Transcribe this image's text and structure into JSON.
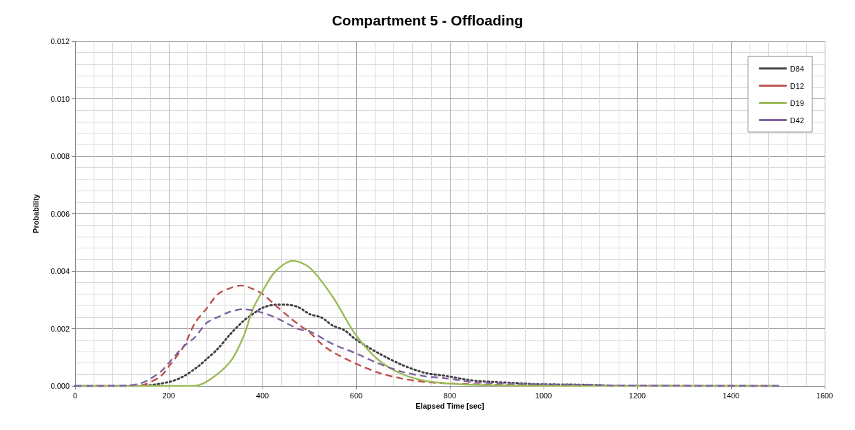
{
  "chart_data": {
    "type": "line",
    "title": "Compartment 5 - Offloading",
    "xlabel": "Elapsed Time [sec]",
    "ylabel": "Probability",
    "xlim": [
      0,
      1600
    ],
    "xticks": [
      0,
      200,
      400,
      600,
      800,
      1000,
      1200,
      1400,
      1600
    ],
    "ylim": [
      0,
      0.012
    ],
    "yticks": [
      {
        "value": 0,
        "label": "0.000"
      },
      {
        "value": 0.002,
        "label": "0.002"
      },
      {
        "value": 0.004,
        "label": "0.004"
      },
      {
        "value": 0.006,
        "label": "0.006"
      },
      {
        "value": 0.008,
        "label": "0.008"
      },
      {
        "value": 0.01,
        "label": "0.010"
      },
      {
        "value": 0.012,
        "label": "0.012"
      }
    ],
    "grid": true,
    "legend": "top right",
    "marker": "none",
    "series": [
      {
        "name": "D84",
        "color": "#404040",
        "line_style": "dotted",
        "x": [
          0,
          134,
          201,
          232,
          261,
          281,
          305,
          330,
          359,
          379,
          400,
          428,
          452,
          477,
          501,
          526,
          550,
          575,
          599,
          648,
          697,
          746,
          795,
          844,
          893,
          942,
          991,
          1089,
          1155,
          1500
        ],
        "values": [
          0,
          0,
          0.00014,
          0.00034,
          0.00066,
          0.00094,
          0.0013,
          0.00178,
          0.00226,
          0.0025,
          0.00272,
          0.00283,
          0.00283,
          0.00274,
          0.0025,
          0.00238,
          0.0021,
          0.00194,
          0.00162,
          0.00114,
          0.00074,
          0.00046,
          0.00034,
          0.0002,
          0.00014,
          0.0001,
          6e-05,
          4e-05,
          1e-05,
          0
        ]
      },
      {
        "name": "D12",
        "color": "#c0504d",
        "line_style": "dashed",
        "x": [
          0,
          120,
          148,
          183,
          201,
          232,
          256,
          281,
          305,
          330,
          354,
          379,
          400,
          428,
          457,
          477,
          501,
          526,
          550,
          599,
          648,
          697,
          746,
          795,
          844,
          942,
          1100,
          1500
        ],
        "values": [
          0,
          0,
          5e-05,
          0.00034,
          0.0007,
          0.00138,
          0.0022,
          0.0027,
          0.0032,
          0.0034,
          0.0035,
          0.00338,
          0.0032,
          0.0028,
          0.0024,
          0.00214,
          0.00186,
          0.00146,
          0.00118,
          0.00078,
          0.00046,
          0.00026,
          0.00014,
          9e-05,
          6e-05,
          3e-05,
          1e-05,
          0
        ]
      },
      {
        "name": "D19",
        "color": "#9bbb59",
        "line_style": "solid",
        "x": [
          0,
          250,
          280,
          330,
          359,
          379,
          400,
          428,
          465,
          502,
          550,
          599,
          648,
          697,
          746,
          795,
          844,
          950,
          1500
        ],
        "values": [
          0,
          0,
          0.00014,
          0.00082,
          0.0017,
          0.00266,
          0.0033,
          0.004,
          0.00436,
          0.0041,
          0.0031,
          0.00178,
          0.0009,
          0.00042,
          0.00018,
          9e-05,
          4e-05,
          1e-05,
          0
        ]
      },
      {
        "name": "D42",
        "color": "#8064a2",
        "line_style": "dashed",
        "x": [
          0,
          114,
          148,
          183,
          201,
          232,
          256,
          281,
          305,
          330,
          359,
          389,
          428,
          477,
          501,
          550,
          599,
          648,
          697,
          746,
          795,
          844,
          893,
          991,
          1089,
          1155,
          1500
        ],
        "values": [
          0,
          2e-05,
          0.00014,
          0.0005,
          0.00082,
          0.00138,
          0.0017,
          0.0022,
          0.0024,
          0.00258,
          0.00267,
          0.0026,
          0.00238,
          0.00198,
          0.0019,
          0.00146,
          0.00114,
          0.00078,
          0.0005,
          0.00034,
          0.00026,
          0.00014,
          0.0001,
          6e-05,
          4e-05,
          2e-05,
          0
        ]
      }
    ]
  }
}
